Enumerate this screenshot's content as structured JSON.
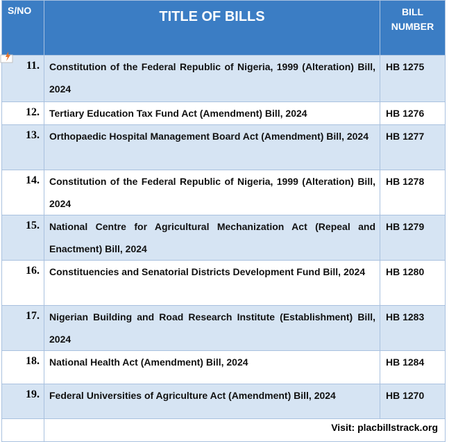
{
  "header": {
    "sno": "S/NO",
    "title": "TITLE OF BILLS",
    "bill_number": "BILL NUMBER"
  },
  "rows": [
    [
      "11.",
      "Constitution of the Federal Republic of Nigeria, 1999 (Alteration) Bill, 2024",
      "HB 1275"
    ],
    [
      "12.",
      "Tertiary Education Tax Fund Act (Amendment) Bill, 2024",
      "HB 1276"
    ],
    [
      "13.",
      "Orthopaedic Hospital Management Board Act (Amendment) Bill, 2024",
      "HB 1277"
    ],
    [
      "14.",
      "Constitution of the Federal Republic of Nigeria, 1999 (Alteration) Bill, 2024",
      "HB 1278"
    ],
    [
      "15.",
      "National Centre for Agricultural Mechanization Act (Repeal and Enactment) Bill, 2024",
      "HB 1279"
    ],
    [
      "16.",
      "Constituencies and Senatorial Districts Development Fund Bill, 2024",
      "HB 1280"
    ],
    [
      "17.",
      "Nigerian Building and Road Research Institute (Establishment) Bill, 2024",
      "HB 1283"
    ],
    [
      "18.",
      "National Health Act (Amendment) Bill, 2024",
      "HB 1284"
    ],
    [
      "19.",
      "Federal Universities of Agriculture Act (Amendment) Bill, 2024",
      "HB 1270"
    ]
  ],
  "footer": "Visit: placbillstrack.org"
}
